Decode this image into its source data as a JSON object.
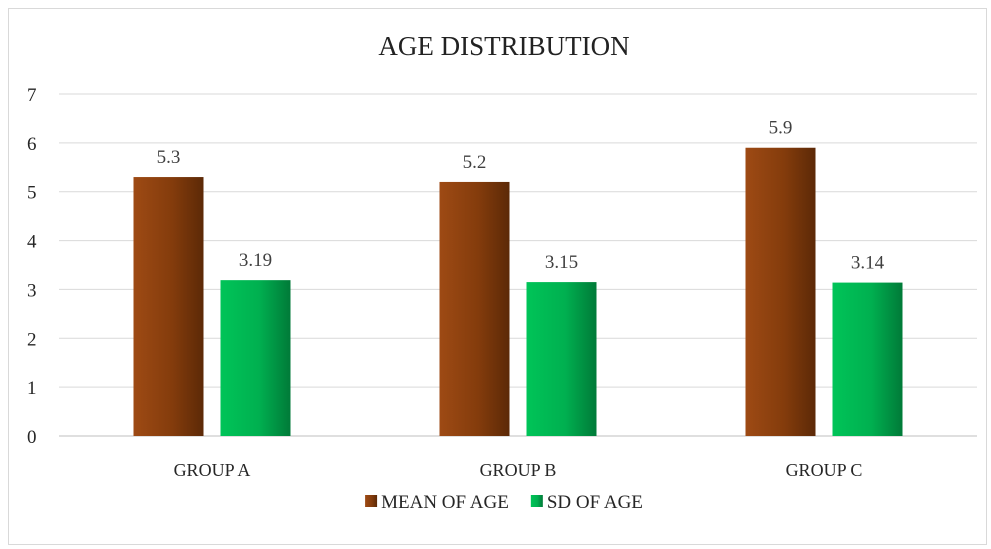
{
  "chart_data": {
    "type": "bar",
    "title": "AGE DISTRIBUTION",
    "xlabel": "",
    "ylabel": "",
    "categories": [
      "GROUP A",
      "GROUP B",
      "GROUP C"
    ],
    "series": [
      {
        "name": "MEAN OF AGE",
        "values": [
          5.3,
          5.2,
          5.9
        ],
        "labels": [
          "5.3",
          "5.2",
          "5.9"
        ],
        "color": "#843C0C",
        "color_light": "#9E4A14",
        "color_dark": "#5C2907"
      },
      {
        "name": "SD OF AGE",
        "values": [
          3.19,
          3.15,
          3.14
        ],
        "labels": [
          "3.19",
          "3.15",
          "3.14"
        ],
        "color": "#00B050",
        "color_light": "#00C458",
        "color_dark": "#007A38"
      }
    ],
    "ylim": [
      0,
      7
    ],
    "yticks": [
      "0",
      "1",
      "2",
      "3",
      "4",
      "5",
      "6",
      "7"
    ],
    "grid": true,
    "legend_position": "bottom"
  }
}
